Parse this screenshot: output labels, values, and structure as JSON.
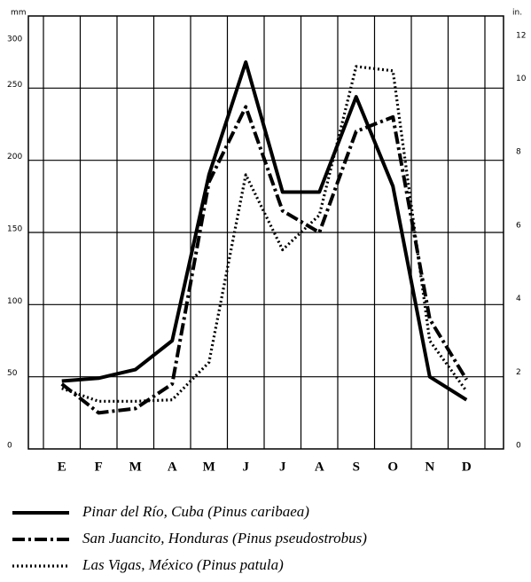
{
  "chart_data": {
    "type": "line",
    "y_label": "mm",
    "y2_label": "in.",
    "categories": [
      "E",
      "F",
      "M",
      "A",
      "M",
      "J",
      "J",
      "A",
      "S",
      "O",
      "N",
      "D"
    ],
    "series": [
      {
        "name": "Pinar del Río, Cuba (Pinus caribaea)",
        "color": "#000000",
        "style": "solid",
        "values": [
          47,
          49,
          55,
          75,
          190,
          268,
          178,
          178,
          244,
          182,
          50,
          34
        ]
      },
      {
        "name": "San Juancito, Honduras (Pinus pseudostrobus)",
        "color": "#000000",
        "style": "dashdot",
        "values": [
          45,
          25,
          28,
          45,
          185,
          237,
          165,
          150,
          220,
          230,
          90,
          48
        ]
      },
      {
        "name": "Las Vigas, México (Pinus patula)",
        "color": "#000000",
        "style": "dotted",
        "values": [
          42,
          33,
          33,
          34,
          60,
          190,
          138,
          162,
          265,
          262,
          75,
          40
        ]
      }
    ],
    "ylim": [
      0,
      300
    ],
    "yticks": [
      0,
      50,
      100,
      150,
      200,
      250,
      300
    ],
    "y2lim": [
      0,
      11.8
    ],
    "y2ticks": [
      0,
      2,
      4,
      6,
      8,
      10,
      12
    ],
    "grid": true
  }
}
